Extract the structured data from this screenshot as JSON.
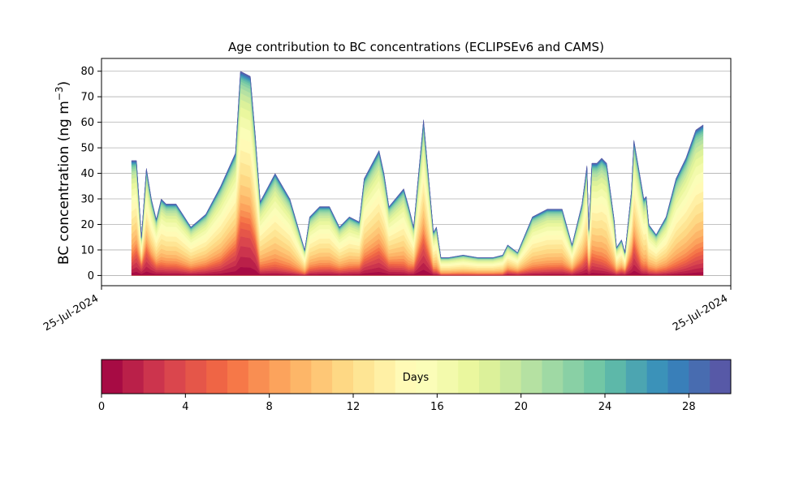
{
  "chart_data": {
    "type": "area",
    "title": "Age contribution to BC concentrations (ECLIPSEv6 and CAMS)",
    "xlabel": "",
    "ylabel": "BC concentration (ng m",
    "ylabel_exp": "−3",
    "ylabel_close": ")",
    "x_tick_labels": [
      "25-Jul-2024",
      "25-Jul-2024"
    ],
    "y_ticks": [
      0,
      10,
      20,
      30,
      40,
      50,
      60,
      70,
      80
    ],
    "ylim": [
      -4,
      85
    ],
    "grid": "y-only",
    "colorbar": {
      "label": "Days",
      "min": 0,
      "max": 30,
      "ticks": [
        0,
        4,
        8,
        12,
        16,
        20,
        24,
        28
      ],
      "colormap": "Spectral",
      "bands": 30
    },
    "total": [
      [
        0,
        45
      ],
      [
        1,
        45
      ],
      [
        2,
        15
      ],
      [
        3,
        42
      ],
      [
        4,
        30
      ],
      [
        5,
        22
      ],
      [
        6,
        30
      ],
      [
        7,
        28
      ],
      [
        8,
        28
      ],
      [
        9,
        28
      ],
      [
        12,
        19
      ],
      [
        15,
        24
      ],
      [
        18,
        35
      ],
      [
        21,
        48
      ],
      [
        22,
        80
      ],
      [
        23,
        79
      ],
      [
        24,
        78
      ],
      [
        25,
        55
      ],
      [
        26,
        29
      ],
      [
        29,
        40
      ],
      [
        32,
        30
      ],
      [
        35,
        10
      ],
      [
        36,
        23
      ],
      [
        37,
        25
      ],
      [
        38,
        27
      ],
      [
        40,
        27
      ],
      [
        42,
        19
      ],
      [
        43,
        21
      ],
      [
        44,
        23
      ],
      [
        46,
        21
      ],
      [
        47,
        38
      ],
      [
        50,
        49
      ],
      [
        51,
        40
      ],
      [
        52,
        27
      ],
      [
        55,
        34
      ],
      [
        56,
        27
      ],
      [
        57,
        19
      ],
      [
        59,
        61
      ],
      [
        61,
        17
      ],
      [
        61.6,
        19
      ],
      [
        62.5,
        7
      ],
      [
        64,
        7
      ],
      [
        67,
        8
      ],
      [
        70,
        7
      ],
      [
        73,
        7
      ],
      [
        75,
        8
      ],
      [
        76,
        12
      ],
      [
        78,
        9
      ],
      [
        81,
        23
      ],
      [
        84,
        26
      ],
      [
        87,
        26
      ],
      [
        89,
        12
      ],
      [
        91,
        28
      ],
      [
        92,
        43
      ],
      [
        92.4,
        18
      ],
      [
        93,
        44
      ],
      [
        94,
        44
      ],
      [
        95,
        46
      ],
      [
        96,
        44
      ],
      [
        97.5,
        22
      ],
      [
        98,
        11
      ],
      [
        99,
        14
      ],
      [
        99.7,
        9
      ],
      [
        101,
        33
      ],
      [
        101.5,
        53
      ],
      [
        103,
        36
      ],
      [
        103.5,
        30
      ],
      [
        104,
        31
      ],
      [
        104.5,
        20
      ],
      [
        106,
        16
      ],
      [
        108,
        23
      ],
      [
        110,
        38
      ],
      [
        112,
        46
      ],
      [
        114,
        57
      ],
      [
        115.5,
        59
      ]
    ],
    "young_fraction": [
      [
        0,
        0.3
      ],
      [
        2,
        0.8
      ],
      [
        6,
        0.25
      ],
      [
        12,
        0.2
      ],
      [
        18,
        0.3
      ],
      [
        21,
        0.6
      ],
      [
        22,
        0.75
      ],
      [
        25,
        0.7
      ],
      [
        26,
        0.15
      ],
      [
        35,
        0.05
      ],
      [
        36,
        0.15
      ],
      [
        44,
        0.2
      ],
      [
        50,
        0.45
      ],
      [
        56,
        0.15
      ],
      [
        58,
        0.55
      ],
      [
        59,
        0.65
      ],
      [
        61,
        0.2
      ],
      [
        62.5,
        0.05
      ],
      [
        75,
        0.06
      ],
      [
        76,
        0.3
      ],
      [
        81,
        0.15
      ],
      [
        87,
        0.2
      ],
      [
        92,
        0.4
      ],
      [
        97,
        0.1
      ],
      [
        101,
        0.55
      ],
      [
        101.5,
        0.65
      ],
      [
        103,
        0.15
      ],
      [
        110,
        0.12
      ],
      [
        115.5,
        0.32
      ]
    ]
  }
}
